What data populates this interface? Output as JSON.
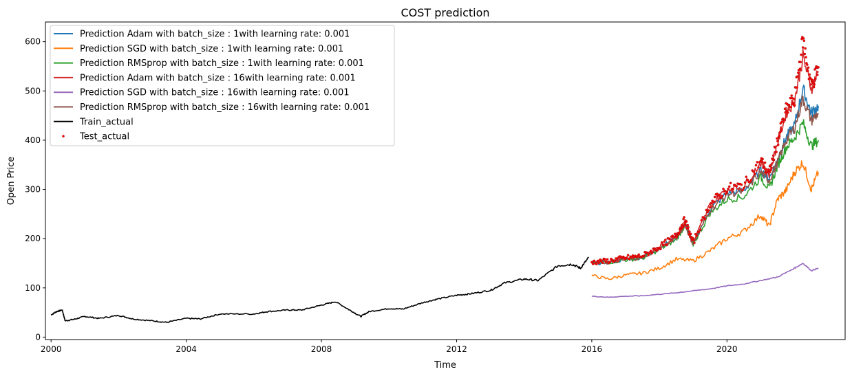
{
  "chart_data": {
    "type": "line",
    "title": "COST prediction",
    "xlabel": "Time",
    "ylabel": "Open Price",
    "xlim": [
      "1999-11-01",
      "2023-07-01"
    ],
    "ylim": [
      -5,
      640
    ],
    "x_ticks": [
      {
        "date": "2000-01-01",
        "label": "2000"
      },
      {
        "date": "2004-01-01",
        "label": "2004"
      },
      {
        "date": "2008-01-01",
        "label": "2008"
      },
      {
        "date": "2012-01-01",
        "label": "2012"
      },
      {
        "date": "2016-01-01",
        "label": "2016"
      },
      {
        "date": "2020-01-01",
        "label": "2020"
      }
    ],
    "y_ticks": [
      0,
      100,
      200,
      300,
      400,
      500,
      600
    ],
    "grid": false,
    "legend_position": "top-left",
    "series": [
      {
        "name": "Prediction Adam with batch_size : 1with learning rate: 0.001",
        "color": "#1f77b4",
        "style": "line",
        "x": [
          "2016-01-01",
          "2016-07-01",
          "2017-01-01",
          "2017-07-01",
          "2018-01-01",
          "2018-07-01",
          "2018-10-01",
          "2019-01-01",
          "2019-07-01",
          "2020-01-01",
          "2020-07-01",
          "2021-01-01",
          "2021-04-01",
          "2021-07-01",
          "2021-10-01",
          "2022-01-01",
          "2022-04-01",
          "2022-07-01",
          "2022-09-15"
        ],
        "y": [
          150,
          152,
          158,
          162,
          180,
          202,
          232,
          190,
          260,
          292,
          298,
          338,
          322,
          360,
          405,
          430,
          505,
          455,
          470
        ]
      },
      {
        "name": "Prediction SGD with batch_size : 1with learning rate: 0.001",
        "color": "#ff7f0e",
        "style": "line",
        "x": [
          "2016-01-01",
          "2016-07-01",
          "2017-01-01",
          "2017-07-01",
          "2018-01-01",
          "2018-07-01",
          "2019-01-01",
          "2019-07-01",
          "2020-01-01",
          "2020-07-01",
          "2021-01-01",
          "2021-04-01",
          "2021-07-01",
          "2021-10-01",
          "2022-01-01",
          "2022-04-01",
          "2022-07-01",
          "2022-09-15"
        ],
        "y": [
          125,
          118,
          126,
          130,
          140,
          158,
          155,
          175,
          200,
          215,
          248,
          225,
          280,
          298,
          335,
          355,
          300,
          335
        ]
      },
      {
        "name": "Prediction RMSprop with batch_size : 1with learning rate: 0.001",
        "color": "#2ca02c",
        "style": "line",
        "x": [
          "2016-01-01",
          "2016-07-01",
          "2017-01-01",
          "2017-07-01",
          "2018-01-01",
          "2018-07-01",
          "2018-10-01",
          "2019-01-01",
          "2019-07-01",
          "2020-01-01",
          "2020-07-01",
          "2021-01-01",
          "2021-04-01",
          "2021-07-01",
          "2021-10-01",
          "2022-01-01",
          "2022-04-01",
          "2022-07-01",
          "2022-09-15"
        ],
        "y": [
          150,
          152,
          157,
          160,
          178,
          198,
          226,
          188,
          252,
          280,
          285,
          325,
          300,
          348,
          385,
          405,
          435,
          388,
          400
        ]
      },
      {
        "name": "Prediction Adam with batch_size : 16with learning rate: 0.001",
        "color": "#d62728",
        "style": "line",
        "x": [
          "2016-01-01",
          "2016-07-01",
          "2017-01-01",
          "2017-07-01",
          "2018-01-01",
          "2018-07-01",
          "2018-10-01",
          "2019-01-01",
          "2019-07-01",
          "2020-01-01",
          "2020-07-01",
          "2021-01-01",
          "2021-04-01",
          "2021-07-01",
          "2021-10-01",
          "2022-01-01",
          "2022-04-01",
          "2022-07-01",
          "2022-09-15"
        ],
        "y": [
          152,
          154,
          160,
          164,
          182,
          205,
          236,
          192,
          268,
          300,
          306,
          355,
          330,
          395,
          455,
          480,
          570,
          505,
          540
        ]
      },
      {
        "name": "Prediction SGD with batch_size : 16with learning rate: 0.001",
        "color": "#9467bd",
        "style": "line",
        "x": [
          "2016-01-01",
          "2016-07-01",
          "2017-01-01",
          "2017-07-01",
          "2018-01-01",
          "2018-07-01",
          "2019-01-01",
          "2019-07-01",
          "2020-01-01",
          "2020-07-01",
          "2021-01-01",
          "2021-07-01",
          "2022-01-01",
          "2022-04-01",
          "2022-07-01",
          "2022-09-15"
        ],
        "y": [
          83,
          81,
          83,
          84,
          87,
          90,
          94,
          98,
          104,
          108,
          115,
          122,
          140,
          150,
          135,
          140
        ]
      },
      {
        "name": "Prediction RMSprop with batch_size : 16with learning rate: 0.001",
        "color": "#8c564b",
        "style": "line",
        "x": [
          "2016-01-01",
          "2016-07-01",
          "2017-01-01",
          "2017-07-01",
          "2018-01-01",
          "2018-07-01",
          "2018-10-01",
          "2019-01-01",
          "2019-07-01",
          "2020-01-01",
          "2020-07-01",
          "2021-01-01",
          "2021-04-01",
          "2021-07-01",
          "2021-10-01",
          "2022-01-01",
          "2022-04-01",
          "2022-07-01",
          "2022-09-15"
        ],
        "y": [
          150,
          152,
          157,
          162,
          180,
          200,
          230,
          188,
          258,
          290,
          296,
          335,
          318,
          355,
          400,
          425,
          485,
          440,
          455
        ]
      },
      {
        "name": "Train_actual",
        "color": "#000000",
        "style": "line",
        "x": [
          "2000-01-01",
          "2000-03-01",
          "2000-05-01",
          "2000-06-01",
          "2000-09-01",
          "2001-01-01",
          "2001-06-01",
          "2002-01-01",
          "2002-06-01",
          "2003-01-01",
          "2003-06-01",
          "2004-01-01",
          "2004-06-01",
          "2005-01-01",
          "2006-01-01",
          "2006-06-01",
          "2007-01-01",
          "2007-06-01",
          "2008-01-01",
          "2008-06-01",
          "2008-11-01",
          "2009-03-01",
          "2009-06-01",
          "2010-01-01",
          "2010-06-01",
          "2011-01-01",
          "2011-06-01",
          "2012-01-01",
          "2012-06-01",
          "2013-01-01",
          "2013-06-01",
          "2014-01-01",
          "2014-06-01",
          "2015-01-01",
          "2015-06-01",
          "2015-09-01",
          "2015-12-01"
        ],
        "y": [
          45,
          52,
          55,
          33,
          36,
          42,
          38,
          44,
          37,
          33,
          30,
          38,
          37,
          47,
          47,
          52,
          55,
          55,
          65,
          72,
          55,
          42,
          52,
          58,
          57,
          70,
          77,
          85,
          88,
          95,
          110,
          118,
          115,
          145,
          148,
          140,
          162
        ]
      },
      {
        "name": "Test_actual",
        "color": "#ff0000",
        "edge_color": "#8b1a1a",
        "style": "dotted-markers",
        "x": [
          "2016-01-01",
          "2016-07-01",
          "2017-01-01",
          "2017-07-01",
          "2018-01-01",
          "2018-07-01",
          "2018-10-01",
          "2019-01-01",
          "2019-07-01",
          "2020-01-01",
          "2020-07-01",
          "2021-01-01",
          "2021-04-01",
          "2021-07-01",
          "2021-10-01",
          "2022-01-01",
          "2022-04-01",
          "2022-07-01",
          "2022-09-15"
        ],
        "y": [
          152,
          155,
          161,
          165,
          183,
          206,
          238,
          192,
          270,
          302,
          308,
          358,
          332,
          398,
          460,
          485,
          605,
          510,
          548
        ]
      }
    ]
  }
}
